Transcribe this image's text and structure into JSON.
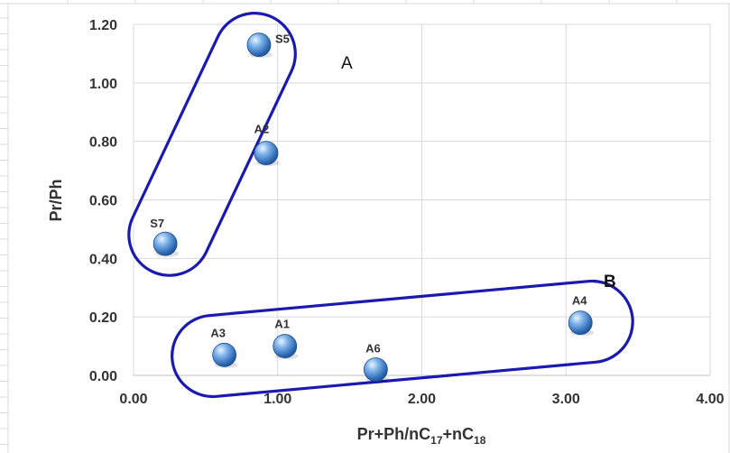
{
  "chart_data": {
    "type": "scatter",
    "xlabel": "Pr+Ph/nC17+nC18",
    "xlabel_parts": {
      "main": "Pr+Ph/nC",
      "sub1": "17",
      "mid": "+nC",
      "sub2": "18"
    },
    "ylabel": "Pr/Ph",
    "xlim": [
      0,
      4
    ],
    "ylim": [
      0,
      1.2
    ],
    "x_ticks": [
      "0.00",
      "1.00",
      "2.00",
      "3.00",
      "4.00"
    ],
    "y_ticks": [
      "0.00",
      "0.20",
      "0.40",
      "0.60",
      "0.80",
      "1.00",
      "1.20"
    ],
    "grid": true,
    "marker_color": "#3a78c2",
    "group_color": "#1a1ab0",
    "points": [
      {
        "label": "S5",
        "x": 0.87,
        "y": 1.13
      },
      {
        "label": "A2",
        "x": 0.92,
        "y": 0.76
      },
      {
        "label": "S7",
        "x": 0.22,
        "y": 0.45
      },
      {
        "label": "A3",
        "x": 0.63,
        "y": 0.07
      },
      {
        "label": "A1",
        "x": 1.05,
        "y": 0.1
      },
      {
        "label": "A6",
        "x": 1.68,
        "y": 0.02
      },
      {
        "label": "A4",
        "x": 3.1,
        "y": 0.18
      }
    ],
    "groups": [
      {
        "label": "A",
        "members": [
          "S5",
          "A2",
          "S7"
        ]
      },
      {
        "label": "B",
        "members": [
          "A3",
          "A1",
          "A6",
          "A4"
        ]
      }
    ]
  }
}
